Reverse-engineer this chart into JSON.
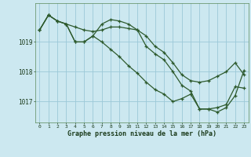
{
  "title": "Graphe pression niveau de la mer (hPa)",
  "background_color": "#cce8f0",
  "line_color": "#2d5a2d",
  "grid_color": "#9cc8d8",
  "ylabel_ticks": [
    1017,
    1018,
    1019
  ],
  "xlim": [
    -0.5,
    23.5
  ],
  "ylim": [
    1016.3,
    1020.3
  ],
  "xticks": [
    0,
    1,
    2,
    3,
    4,
    5,
    6,
    7,
    8,
    9,
    10,
    11,
    12,
    13,
    14,
    15,
    16,
    17,
    18,
    19,
    20,
    21,
    22,
    23
  ],
  "series": [
    {
      "x": [
        0,
        1,
        2,
        3,
        4,
        5,
        6,
        7,
        8,
        9,
        10,
        11,
        12,
        13,
        14,
        15,
        16,
        17,
        18,
        19,
        20,
        21,
        22,
        23
      ],
      "y": [
        1019.4,
        1019.9,
        1019.7,
        1019.6,
        1019.5,
        1019.4,
        1019.35,
        1019.4,
        1019.5,
        1019.5,
        1019.45,
        1019.4,
        1019.2,
        1018.85,
        1018.65,
        1018.3,
        1017.9,
        1017.7,
        1017.65,
        1017.7,
        1017.85,
        1018.0,
        1018.3,
        1017.9
      ]
    },
    {
      "x": [
        0,
        1,
        2,
        3,
        4,
        5,
        6,
        7,
        8,
        9,
        10,
        11,
        12,
        13,
        14,
        15,
        16,
        17,
        18,
        19,
        20,
        21,
        22,
        23
      ],
      "y": [
        1019.4,
        1019.9,
        1019.7,
        1019.6,
        1019.0,
        1019.0,
        1019.2,
        1019.6,
        1019.75,
        1019.7,
        1019.6,
        1019.4,
        1018.85,
        1018.6,
        1018.4,
        1018.0,
        1017.55,
        1017.35,
        1016.75,
        1016.75,
        1016.8,
        1016.9,
        1017.5,
        1017.45
      ]
    },
    {
      "x": [
        0,
        1,
        2,
        3,
        4,
        5,
        6,
        7,
        8,
        9,
        10,
        11,
        12,
        13,
        14,
        15,
        16,
        17,
        18,
        19,
        20,
        21,
        22,
        23
      ],
      "y": [
        1019.4,
        1019.9,
        1019.7,
        1019.6,
        1019.0,
        1019.0,
        1019.2,
        1019.0,
        1018.75,
        1018.5,
        1018.2,
        1017.95,
        1017.65,
        1017.4,
        1017.25,
        1017.0,
        1017.1,
        1017.25,
        1016.75,
        1016.75,
        1016.65,
        1016.8,
        1017.2,
        1018.05
      ]
    }
  ]
}
